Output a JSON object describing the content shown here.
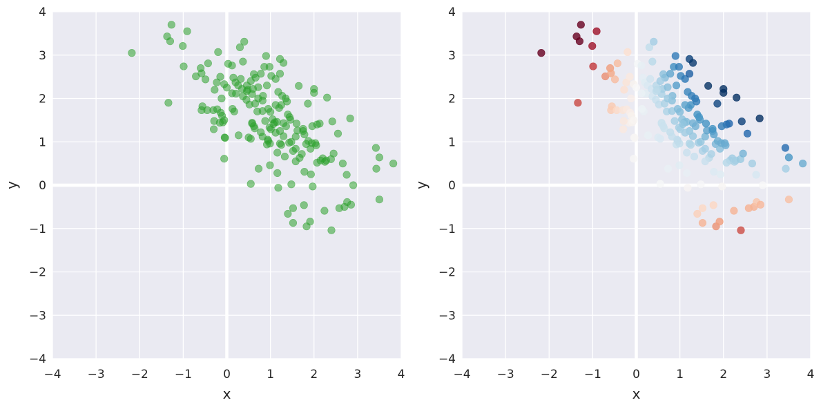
{
  "chart_data": [
    {
      "type": "scatter",
      "xlabel": "x",
      "ylabel": "y",
      "xlim": [
        -4,
        4
      ],
      "ylim": [
        -4,
        4
      ],
      "xticks": [
        "−4",
        "−3",
        "−2",
        "−1",
        "0",
        "1",
        "2",
        "3",
        "4"
      ],
      "yticks": [
        "−4",
        "−3",
        "−2",
        "−1",
        "0",
        "1",
        "2",
        "3",
        "4"
      ],
      "grid": true,
      "zero_lines": true,
      "color": "#2ca02c",
      "alpha": 0.55,
      "color_mode": "single"
    },
    {
      "type": "scatter",
      "xlabel": "x",
      "ylabel": "y",
      "xlim": [
        -4,
        4
      ],
      "ylim": [
        -4,
        4
      ],
      "xticks": [
        "−4",
        "−3",
        "−2",
        "−1",
        "0",
        "1",
        "2",
        "3",
        "4"
      ],
      "yticks": [
        "−4",
        "−3",
        "−2",
        "−1",
        "0",
        "1",
        "2",
        "3",
        "4"
      ],
      "grid": true,
      "zero_lines": true,
      "colormap": "RdBu (diverging, red = negative x·y, blue = positive x·y)",
      "alpha": 0.8,
      "color_mode": "diverging_by_xy_product"
    }
  ],
  "points": [
    [
      -2.18,
      3.05
    ],
    [
      -1.37,
      3.43
    ],
    [
      -1.3,
      3.32
    ],
    [
      -1.27,
      3.7
    ],
    [
      -1.01,
      3.21
    ],
    [
      -0.91,
      3.55
    ],
    [
      -1.34,
      1.9
    ],
    [
      -0.99,
      2.74
    ],
    [
      -0.71,
      2.51
    ],
    [
      -0.6,
      2.7
    ],
    [
      -0.58,
      2.58
    ],
    [
      -0.43,
      2.81
    ],
    [
      -0.49,
      2.44
    ],
    [
      -0.23,
      2.37
    ],
    [
      -0.28,
      2.2
    ],
    [
      -0.2,
      3.07
    ],
    [
      -0.15,
      2.5
    ],
    [
      -0.12,
      2.0
    ],
    [
      -0.06,
      2.33
    ],
    [
      0.0,
      2.25
    ],
    [
      -0.56,
      1.82
    ],
    [
      -0.58,
      1.73
    ],
    [
      -0.45,
      1.73
    ],
    [
      -0.31,
      1.73
    ],
    [
      -0.22,
      1.75
    ],
    [
      -0.14,
      1.67
    ],
    [
      -0.11,
      1.6
    ],
    [
      -0.16,
      1.44
    ],
    [
      -0.29,
      1.48
    ],
    [
      -0.3,
      1.29
    ],
    [
      -0.09,
      1.45
    ],
    [
      -0.06,
      1.5
    ],
    [
      -0.04,
      1.09
    ],
    [
      -0.05,
      1.1
    ],
    [
      -0.06,
      0.61
    ],
    [
      0.03,
      2.8
    ],
    [
      0.12,
      2.76
    ],
    [
      0.15,
      2.48
    ],
    [
      0.2,
      2.37
    ],
    [
      0.26,
      2.3
    ],
    [
      0.3,
      3.18
    ],
    [
      0.37,
      2.85
    ],
    [
      0.4,
      3.31
    ],
    [
      0.35,
      2.22
    ],
    [
      0.46,
      2.3
    ],
    [
      0.37,
      2.05
    ],
    [
      0.45,
      1.97
    ],
    [
      0.52,
      1.86
    ],
    [
      0.58,
      2.1
    ],
    [
      0.6,
      2.22
    ],
    [
      0.62,
      2.56
    ],
    [
      0.66,
      2.48
    ],
    [
      0.72,
      2.26
    ],
    [
      0.78,
      2.57
    ],
    [
      0.83,
      2.06
    ],
    [
      0.86,
      2.73
    ],
    [
      0.9,
      2.98
    ],
    [
      0.98,
      2.73
    ],
    [
      1.02,
      2.52
    ],
    [
      1.12,
      2.45
    ],
    [
      1.22,
      2.57
    ],
    [
      1.22,
      2.91
    ],
    [
      0.7,
      1.7
    ],
    [
      0.82,
      1.71
    ],
    [
      0.88,
      1.48
    ],
    [
      0.95,
      1.76
    ],
    [
      1.0,
      1.69
    ],
    [
      1.05,
      1.52
    ],
    [
      1.1,
      1.45
    ],
    [
      1.15,
      1.46
    ],
    [
      1.2,
      1.78
    ],
    [
      1.25,
      1.85
    ],
    [
      1.27,
      2.06
    ],
    [
      1.35,
      2.0
    ],
    [
      1.38,
      1.93
    ],
    [
      1.4,
      1.63
    ],
    [
      1.44,
      1.57
    ],
    [
      1.3,
      1.43
    ],
    [
      1.36,
      1.36
    ],
    [
      1.22,
      1.25
    ],
    [
      1.12,
      1.21
    ],
    [
      1.01,
      1.29
    ],
    [
      0.94,
      1.05
    ],
    [
      0.92,
      0.94
    ],
    [
      0.99,
      0.96
    ],
    [
      0.98,
      1.33
    ],
    [
      0.5,
      1.1
    ],
    [
      0.55,
      1.07
    ],
    [
      0.58,
      1.44
    ],
    [
      0.64,
      1.31
    ],
    [
      0.78,
      1.22
    ],
    [
      0.95,
      1.02
    ],
    [
      1.16,
      0.75
    ],
    [
      1.22,
      0.96
    ],
    [
      1.25,
      0.93
    ],
    [
      1.33,
      0.66
    ],
    [
      1.43,
      0.98
    ],
    [
      1.48,
      1.0
    ],
    [
      1.52,
      0.79
    ],
    [
      1.58,
      0.84
    ],
    [
      1.58,
      1.12
    ],
    [
      1.62,
      1.26
    ],
    [
      1.67,
      0.63
    ],
    [
      1.72,
      0.72
    ],
    [
      1.75,
      1.25
    ],
    [
      1.78,
      1.17
    ],
    [
      1.82,
      0.95
    ],
    [
      1.87,
      1.02
    ],
    [
      1.92,
      0.84
    ],
    [
      1.95,
      0.97
    ],
    [
      2.03,
      0.97
    ],
    [
      2.05,
      0.92
    ],
    [
      2.15,
      0.57
    ],
    [
      2.2,
      0.62
    ],
    [
      2.25,
      0.54
    ],
    [
      2.28,
      0.57
    ],
    [
      2.39,
      0.6
    ],
    [
      2.45,
      0.73
    ],
    [
      2.55,
      1.19
    ],
    [
      2.66,
      0.5
    ],
    [
      2.75,
      0.24
    ],
    [
      2.83,
      1.54
    ],
    [
      2.9,
      0.0
    ],
    [
      3.42,
      0.86
    ],
    [
      3.5,
      0.64
    ],
    [
      3.82,
      0.5
    ],
    [
      3.43,
      0.38
    ],
    [
      0.99,
      0.46
    ],
    [
      0.73,
      0.38
    ],
    [
      1.16,
      0.28
    ],
    [
      1.18,
      -0.06
    ],
    [
      1.48,
      0.02
    ],
    [
      1.78,
      0.31
    ],
    [
      1.93,
      0.25
    ],
    [
      1.97,
      -0.03
    ],
    [
      2.07,
      0.52
    ],
    [
      2.13,
      1.42
    ],
    [
      2.07,
      1.4
    ],
    [
      2.3,
      2.02
    ],
    [
      2.0,
      2.22
    ],
    [
      2.0,
      2.13
    ],
    [
      1.65,
      2.29
    ],
    [
      1.86,
      1.88
    ],
    [
      2.42,
      1.47
    ],
    [
      0.55,
      0.03
    ],
    [
      1.58,
      0.55
    ],
    [
      1.52,
      -0.53
    ],
    [
      1.4,
      -0.66
    ],
    [
      1.52,
      -0.87
    ],
    [
      1.77,
      -0.46
    ],
    [
      1.83,
      -0.95
    ],
    [
      1.91,
      -0.84
    ],
    [
      2.24,
      -0.59
    ],
    [
      2.58,
      -0.53
    ],
    [
      2.7,
      -0.5
    ],
    [
      2.76,
      -0.39
    ],
    [
      2.85,
      -0.45
    ],
    [
      2.4,
      -1.04
    ],
    [
      3.5,
      -0.33
    ],
    [
      0.27,
      1.15
    ],
    [
      0.58,
      1.42
    ],
    [
      0.48,
      2.2
    ],
    [
      0.32,
      2.45
    ],
    [
      0.21,
      2.11
    ],
    [
      0.17,
      1.7
    ],
    [
      0.13,
      1.76
    ],
    [
      1.3,
      1.13
    ],
    [
      1.75,
      1.3
    ],
    [
      0.65,
      1.88
    ],
    [
      0.82,
      1.95
    ],
    [
      0.55,
      2.4
    ],
    [
      0.62,
      1.36
    ],
    [
      1.07,
      1.41
    ],
    [
      1.12,
      1.85
    ],
    [
      1.46,
      1.51
    ],
    [
      1.96,
      1.36
    ],
    [
      0.12,
      2.12
    ],
    [
      1.6,
      1.42
    ],
    [
      0.46,
      2.17
    ],
    [
      0.72,
      2.0
    ],
    [
      0.92,
      2.3
    ],
    [
      1.18,
      2.15
    ],
    [
      1.3,
      2.82
    ],
    [
      0.82,
      1.12
    ]
  ]
}
